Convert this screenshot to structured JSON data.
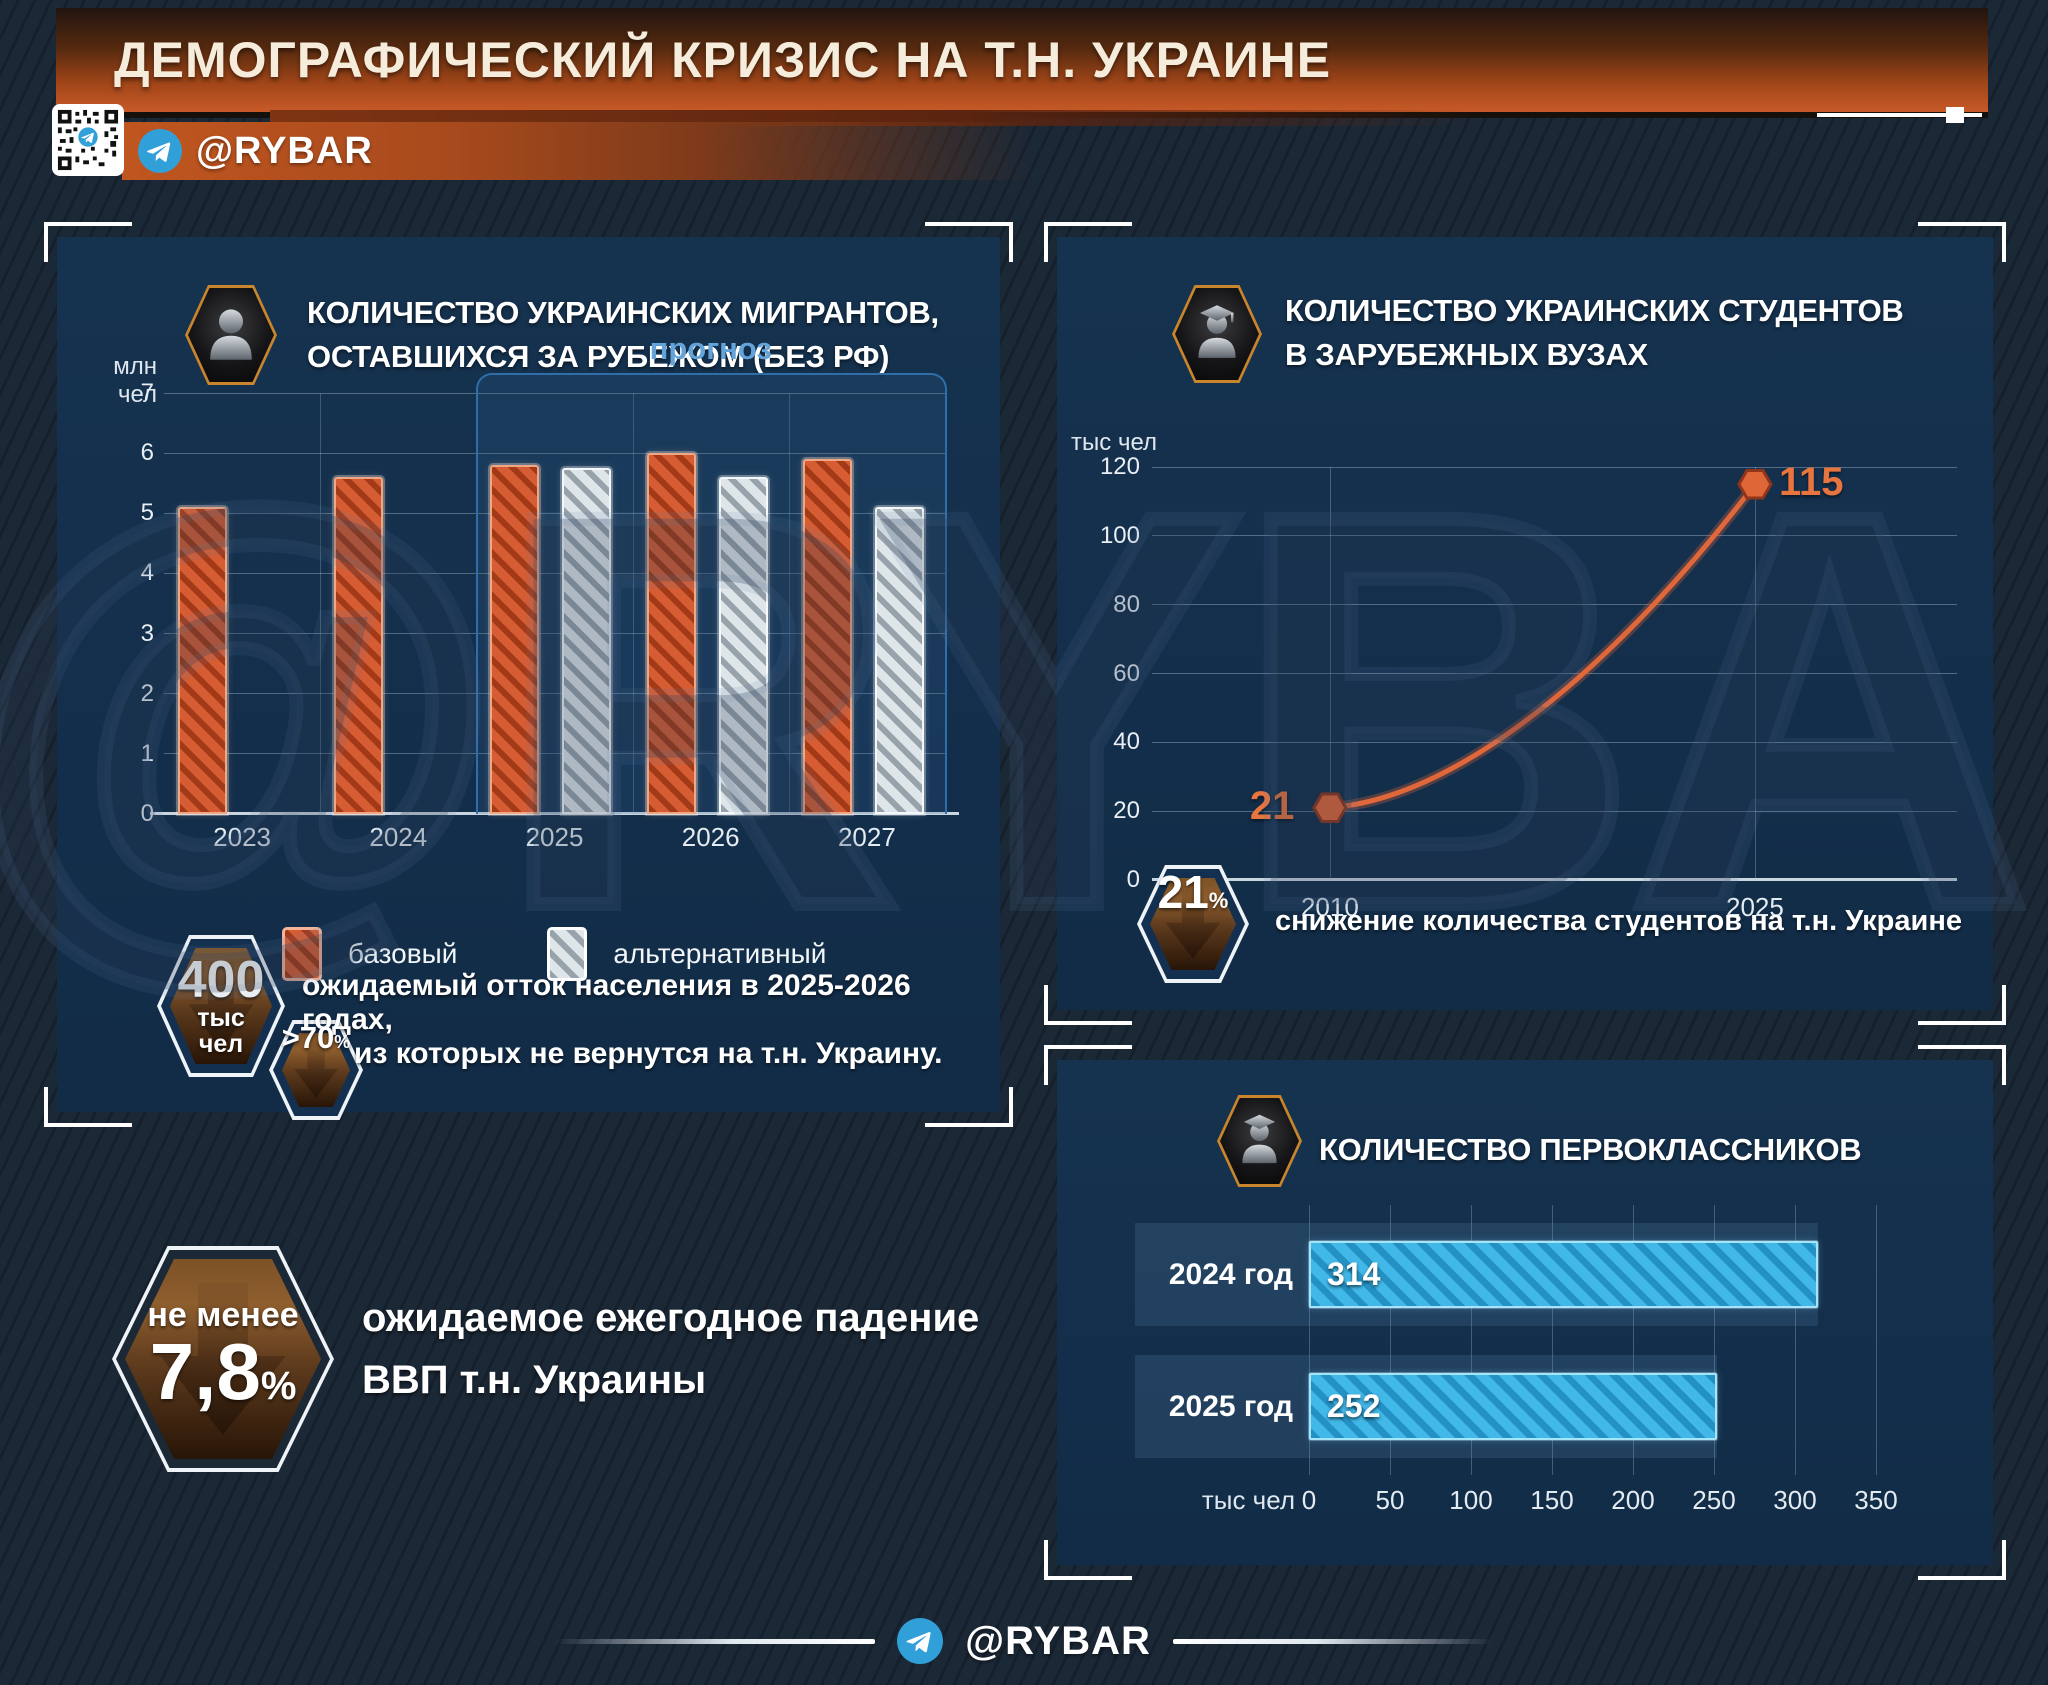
{
  "header": {
    "title": "ДЕМОГРАФИЧЕСКИЙ КРИЗИС НА Т.Н. УКРАИНЕ",
    "channel": "@RYBAR"
  },
  "watermark": "@RYBAR",
  "footer": {
    "channel": "@RYBAR"
  },
  "migrants": {
    "title_line1": "КОЛИЧЕСТВО УКРАИНСКИХ МИГРАНТОВ,",
    "title_line2": "ОСТАВШИХСЯ ЗА РУБЕЖОМ (БЕЗ РФ)",
    "y_unit": "млн чел",
    "forecast_label": "прогноз",
    "legend": [
      {
        "label": "базовый",
        "color": "#d0532e"
      },
      {
        "label": "альтернативный",
        "color": "#c3ccd3"
      }
    ],
    "callout": {
      "value": "400",
      "unit_line1": "тыс",
      "unit_line2": "чел",
      "percent": ">70",
      "percent_sign": "%",
      "line1": "ожидаемый отток населения в 2025-2026 годах,",
      "line2": "из которых не вернутся на т.н. Украину."
    }
  },
  "students": {
    "title_line1": "КОЛИЧЕСТВО УКРАИНСКИХ СТУДЕНТОВ",
    "title_line2": "В ЗАРУБЕЖНЫХ ВУЗАХ",
    "y_unit": "тыс чел",
    "callout": {
      "value": "21",
      "percent_sign": "%",
      "text": "снижение количества студентов на т.н. Украине"
    }
  },
  "firstgraders": {
    "title": "КОЛИЧЕСТВО ПЕРВОКЛАССНИКОВ",
    "x_unit": "тыс чел"
  },
  "gdp": {
    "prefix": "не менее",
    "value": "7,8",
    "percent_sign": "%",
    "line1": "ожидаемое ежегодное падение",
    "line2": "ВВП т.н. Украины"
  },
  "chart_data": [
    {
      "type": "bar",
      "title": "КОЛИЧЕСТВО УКРАИНСКИХ МИГРАНТОВ, ОСТАВШИХСЯ ЗА РУБЕЖОМ (БЕЗ РФ)",
      "categories": [
        "2023",
        "2024",
        "2025",
        "2026",
        "2027"
      ],
      "series": [
        {
          "name": "базовый",
          "values": [
            5.1,
            5.6,
            5.8,
            6.0,
            5.9
          ]
        },
        {
          "name": "альтернативный",
          "values": [
            null,
            null,
            5.75,
            5.6,
            5.1
          ]
        }
      ],
      "ylabel": "млн чел",
      "ylim": [
        0,
        7
      ],
      "yticks": [
        0,
        1,
        2,
        3,
        4,
        5,
        6,
        7
      ],
      "forecast_from": "2025",
      "forecast_label": "прогноз",
      "legend_position": "bottom",
      "grid": true
    },
    {
      "type": "line",
      "title": "КОЛИЧЕСТВО УКРАИНСКИХ СТУДЕНТОВ В ЗАРУБЕЖНЫХ ВУЗАХ",
      "x": [
        2010,
        2025
      ],
      "y": [
        21,
        115
      ],
      "point_labels": [
        "21",
        "115"
      ],
      "ylabel": "тыс чел",
      "ylim": [
        0,
        120
      ],
      "yticks": [
        120,
        100,
        80,
        60,
        40,
        20,
        0
      ],
      "xticks": [
        2010,
        2025
      ],
      "curve": "exponential",
      "color": "#e0673a",
      "grid": true
    },
    {
      "type": "bar",
      "orientation": "horizontal",
      "title": "КОЛИЧЕСТВО ПЕРВОКЛАССНИКОВ",
      "categories": [
        "2024 год",
        "2025 год"
      ],
      "values": [
        314,
        252
      ],
      "xlabel": "тыс чел",
      "xlim": [
        0,
        350
      ],
      "xticks": [
        0,
        50,
        100,
        150,
        200,
        250,
        300,
        350
      ],
      "color": "#2ba7de",
      "grid": true
    }
  ],
  "colors": {
    "background": "#1b2836",
    "panel": "#143050",
    "header_orange": "#c85a28",
    "bar_base": "#d0532e",
    "bar_alt": "#c3ccd3",
    "bar_blue": "#2ba7de",
    "line": "#e0673a",
    "forecast_border": "#2f6ea8",
    "forecast_label": "#64a3d8",
    "point_label": "#e8743f",
    "bronze": "#7c5226",
    "telegram_blue": "#31a0d8",
    "title_cream": "#f6ecdc"
  }
}
